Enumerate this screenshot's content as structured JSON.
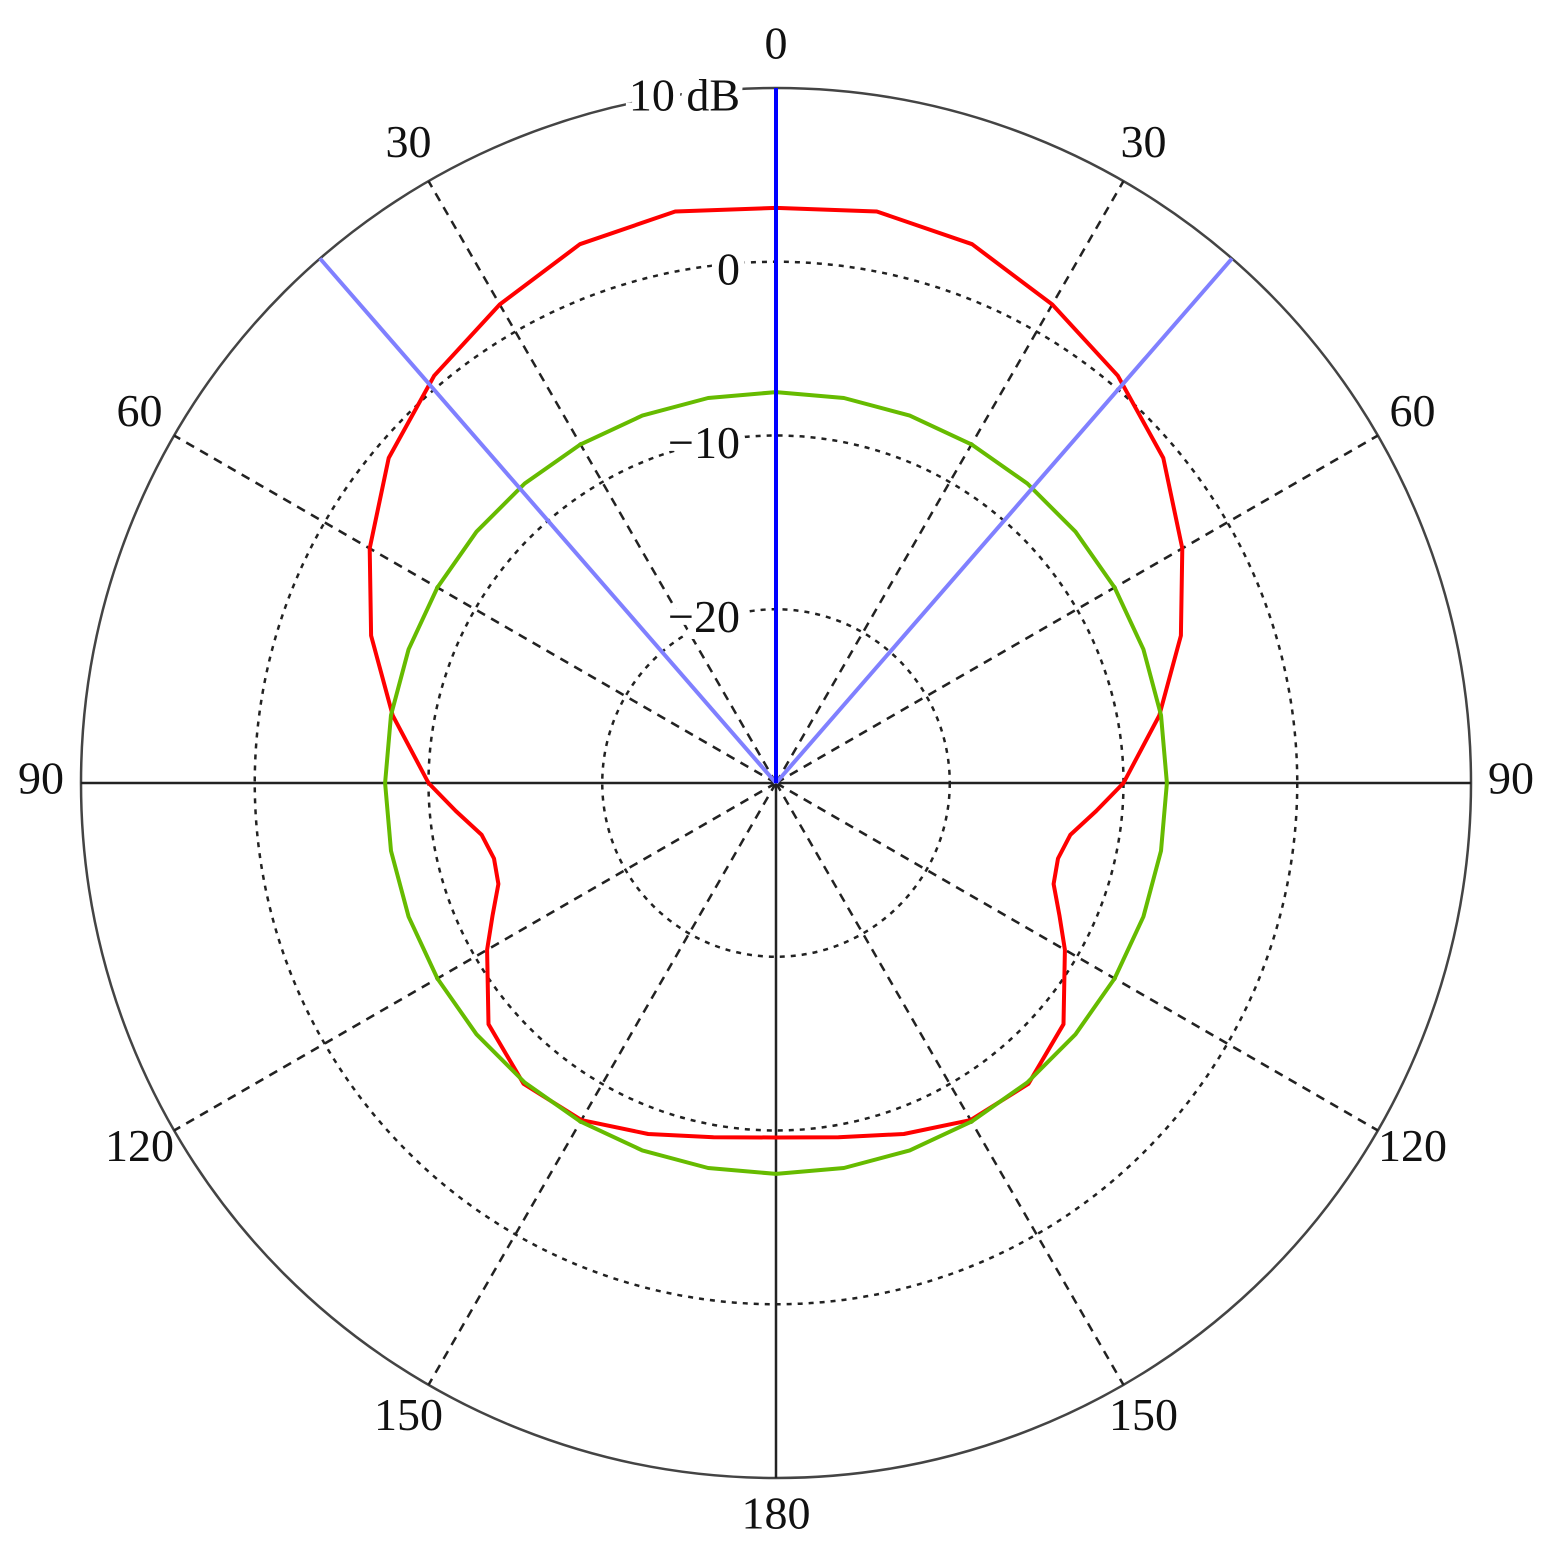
{
  "chart_data": {
    "type": "polar",
    "rlim": [
      -30,
      10
    ],
    "rticks": [
      {
        "value": 10,
        "label": "10 dB"
      },
      0,
      {
        "value": -10,
        "label": "−10"
      },
      {
        "value": -20,
        "label": "−20"
      }
    ],
    "thetaticks": [
      0,
      30,
      60,
      90,
      120,
      150,
      180,
      {
        "value": 210,
        "label": "150"
      },
      {
        "value": 240,
        "label": "120"
      },
      {
        "value": 270,
        "label": "90"
      },
      {
        "value": 300,
        "label": "60"
      },
      {
        "value": 330,
        "label": "30"
      }
    ],
    "theta_zero": "top",
    "theta_direction": "clockwise",
    "grid": true,
    "series": [
      {
        "color": "#ff0000",
        "theta": [
          0,
          10,
          20,
          30,
          40,
          50,
          60,
          70,
          80,
          90,
          95,
          100,
          105,
          110,
          115,
          120,
          130,
          140,
          150,
          160,
          170,
          180,
          190,
          200,
          210,
          220,
          230,
          240,
          245,
          250,
          255,
          260,
          265,
          270,
          280,
          290,
          300,
          310,
          320,
          330,
          340,
          350,
          360
        ],
        "r": [
          3.1,
          3.4,
          3.0,
          1.8,
          0.6,
          -0.9,
          -3.0,
          -5.2,
          -7.6,
          -10.0,
          -11.5,
          -12.8,
          -13.2,
          -13.0,
          -12.0,
          -10.8,
          -8.4,
          -7.4,
          -7.6,
          -8.5,
          -9.3,
          -9.6,
          -9.3,
          -8.5,
          -7.6,
          -7.4,
          -8.4,
          -10.8,
          -12.0,
          -13.0,
          -13.2,
          -12.8,
          -11.5,
          -10.0,
          -7.6,
          -5.2,
          -3.0,
          -0.9,
          0.6,
          1.8,
          3.0,
          3.4,
          3.1
        ]
      },
      {
        "color": "#66bb00",
        "theta": [
          0,
          10,
          20,
          30,
          40,
          50,
          60,
          70,
          80,
          90,
          100,
          110,
          120,
          130,
          140,
          150,
          160,
          170,
          180,
          190,
          200,
          210,
          220,
          230,
          240,
          250,
          260,
          270,
          280,
          290,
          300,
          310,
          320,
          330,
          340,
          350,
          360
        ],
        "r": [
          -7.5,
          -7.5,
          -7.5,
          -7.5,
          -7.5,
          -7.5,
          -7.5,
          -7.5,
          -7.5,
          -7.5,
          -7.5,
          -7.5,
          -7.5,
          -7.5,
          -7.5,
          -7.5,
          -7.5,
          -7.5,
          -7.5,
          -7.5,
          -7.5,
          -7.5,
          -7.5,
          -7.5,
          -7.5,
          -7.5,
          -7.5,
          -7.5,
          -7.5,
          -7.5,
          -7.5,
          -7.5,
          -7.5,
          -7.5,
          -7.5,
          -7.5,
          -7.5
        ]
      },
      {
        "color": "#8080ff",
        "theta": [
          319,
          319
        ],
        "r": [
          -30,
          10
        ]
      },
      {
        "color": "#8080ff",
        "theta": [
          41,
          41
        ],
        "r": [
          -30,
          10
        ]
      },
      {
        "color": "#0000ff",
        "theta": [
          0,
          0
        ],
        "r": [
          -30,
          10
        ]
      }
    ]
  }
}
